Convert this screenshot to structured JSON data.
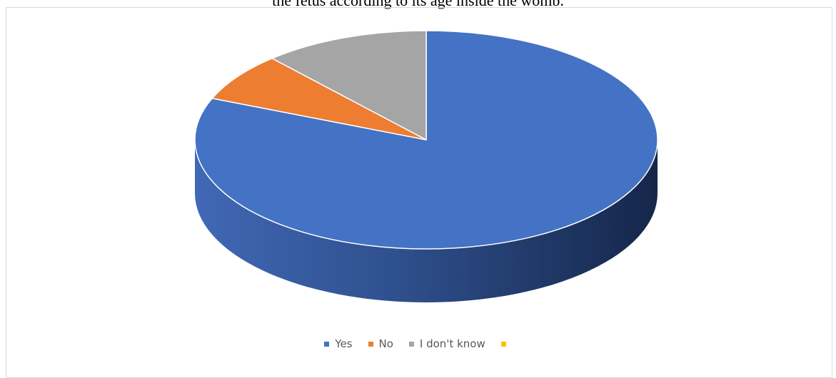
{
  "chart_data": {
    "type": "pie",
    "style": "3d",
    "title": "the fetus according to its age inside the womb.",
    "categories": [
      "Yes",
      "No",
      "I don't know",
      ""
    ],
    "values": [
      81.2,
      7.2,
      11.6,
      0
    ],
    "colors": [
      "#4472c4",
      "#ed7d31",
      "#a5a5a5",
      "#ffc000"
    ],
    "legend_position": "bottom",
    "data_labels": false
  }
}
